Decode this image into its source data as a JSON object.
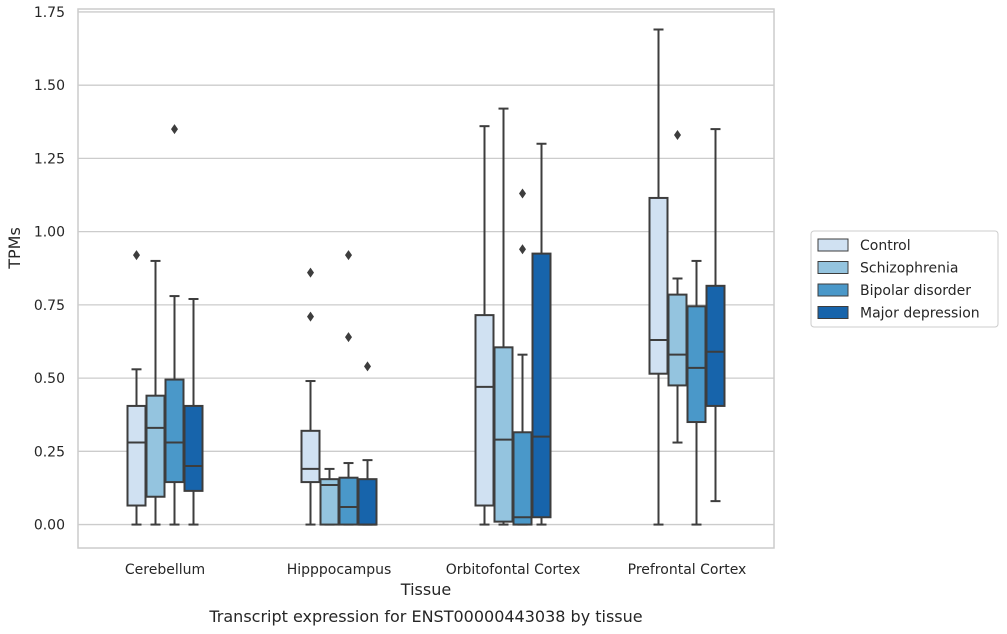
{
  "chart_data": {
    "type": "boxplot",
    "title": "Transcript expression for ENST00000443038 by tissue",
    "xlabel": "Tissue",
    "ylabel": "TPMs",
    "ylim": [
      -0.08,
      1.76
    ],
    "yticks": [
      "0.00",
      "0.25",
      "0.50",
      "0.75",
      "1.00",
      "1.25",
      "1.50",
      "1.75"
    ],
    "grid": "horizontal",
    "legend_position": "right",
    "categories": [
      "Cerebellum",
      "Hipppocampus",
      "Orbitofontal Cortex",
      "Prefrontal Cortex"
    ],
    "series": [
      {
        "name": "Control",
        "color": "#d0e1f2",
        "boxes": [
          {
            "whislo": 0.0,
            "q1": 0.065,
            "med": 0.28,
            "q3": 0.405,
            "whishi": 0.53,
            "fliers": [
              0.92
            ]
          },
          {
            "whislo": 0.0,
            "q1": 0.145,
            "med": 0.19,
            "q3": 0.32,
            "whishi": 0.49,
            "fliers": [
              0.71,
              0.86
            ]
          },
          {
            "whislo": 0.0,
            "q1": 0.065,
            "med": 0.47,
            "q3": 0.715,
            "whishi": 1.36,
            "fliers": []
          },
          {
            "whislo": 0.0,
            "q1": 0.515,
            "med": 0.63,
            "q3": 1.115,
            "whishi": 1.69,
            "fliers": []
          }
        ]
      },
      {
        "name": "Schizophrenia",
        "color": "#94c4df",
        "boxes": [
          {
            "whislo": 0.0,
            "q1": 0.095,
            "med": 0.33,
            "q3": 0.44,
            "whishi": 0.9,
            "fliers": []
          },
          {
            "whislo": 0.0,
            "q1": 0.0,
            "med": 0.135,
            "q3": 0.155,
            "whishi": 0.19,
            "fliers": []
          },
          {
            "whislo": 0.0,
            "q1": 0.01,
            "med": 0.29,
            "q3": 0.605,
            "whishi": 1.42,
            "fliers": []
          },
          {
            "whislo": 0.28,
            "q1": 0.475,
            "med": 0.58,
            "q3": 0.785,
            "whishi": 0.84,
            "fliers": [
              1.33
            ]
          }
        ]
      },
      {
        "name": "Bipolar disorder",
        "color": "#4a98c9",
        "boxes": [
          {
            "whislo": 0.0,
            "q1": 0.145,
            "med": 0.28,
            "q3": 0.495,
            "whishi": 0.78,
            "fliers": [
              1.35
            ]
          },
          {
            "whislo": 0.0,
            "q1": 0.0,
            "med": 0.06,
            "q3": 0.16,
            "whishi": 0.21,
            "fliers": [
              0.64,
              0.92
            ]
          },
          {
            "whislo": 0.0,
            "q1": 0.0,
            "med": 0.025,
            "q3": 0.315,
            "whishi": 0.58,
            "fliers": [
              0.94,
              1.13
            ]
          },
          {
            "whislo": 0.0,
            "q1": 0.35,
            "med": 0.535,
            "q3": 0.745,
            "whishi": 0.9,
            "fliers": []
          }
        ]
      },
      {
        "name": "Major depression",
        "color": "#1764ab",
        "boxes": [
          {
            "whislo": 0.0,
            "q1": 0.115,
            "med": 0.2,
            "q3": 0.405,
            "whishi": 0.77,
            "fliers": []
          },
          {
            "whislo": 0.0,
            "q1": 0.0,
            "med": 0.0,
            "q3": 0.155,
            "whishi": 0.22,
            "fliers": [
              0.54
            ]
          },
          {
            "whislo": 0.0,
            "q1": 0.025,
            "med": 0.3,
            "q3": 0.925,
            "whishi": 1.3,
            "fliers": []
          },
          {
            "whislo": 0.08,
            "q1": 0.405,
            "med": 0.59,
            "q3": 0.815,
            "whishi": 1.35,
            "fliers": []
          }
        ]
      }
    ]
  }
}
